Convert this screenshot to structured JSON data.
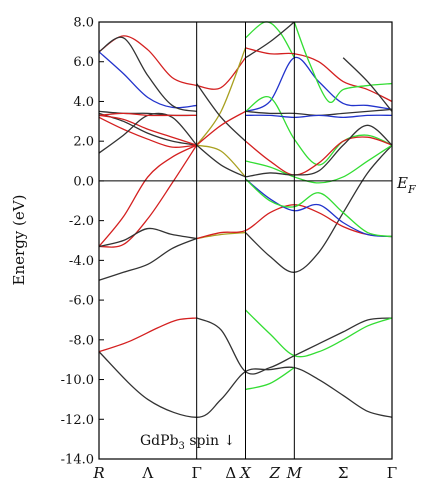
{
  "chart_data": {
    "type": "line",
    "ylabel": "Energy (eV)",
    "ylim": [
      -14.0,
      8.0
    ],
    "yticks": [
      "8.0",
      "6.0",
      "4.0",
      "2.0",
      "0.0",
      "-2.0",
      "-4.0",
      "-6.0",
      "-8.0",
      "-10.0",
      "-12.0",
      "-14.0"
    ],
    "ytick_values": [
      8,
      6,
      4,
      2,
      0,
      -2,
      -4,
      -6,
      -8,
      -10,
      -12,
      -14
    ],
    "xlim": [
      0,
      6
    ],
    "x_points": [
      {
        "label": "R",
        "x": 0
      },
      {
        "label": "Λ",
        "x": 1
      },
      {
        "label": "Γ",
        "x": 2
      },
      {
        "label": "Δ",
        "x": 2.7
      },
      {
        "label": "X",
        "x": 3
      },
      {
        "label": "Z",
        "x": 3.6
      },
      {
        "label": "M",
        "x": 4
      },
      {
        "label": "Σ",
        "x": 5
      },
      {
        "label": "Γ",
        "x": 6
      }
    ],
    "vlines": [
      2,
      3,
      4
    ],
    "fermi_level": 0.0,
    "fermi_label": "E",
    "fermi_label_sub": "F",
    "annotation": "GdPb",
    "annotation_sub": "3",
    "annotation_suffix": " spin ↓",
    "colors": {
      "black": "#333333",
      "red": "#d42020",
      "blue": "#2233cc",
      "green": "#33dd33",
      "olive": "#a8a020"
    },
    "series": [
      {
        "color": "black",
        "x": [
          0,
          1,
          2,
          2.5,
          3,
          3.5,
          4,
          4.5,
          5,
          5.5,
          6
        ],
        "y": [
          -8.6,
          -11.0,
          -11.9,
          -11.0,
          -9.6,
          -9.5,
          -9.4,
          -10.0,
          -10.8,
          -11.6,
          -11.9
        ]
      },
      {
        "color": "red",
        "x": [
          0,
          0.6,
          1.2,
          1.6,
          2
        ],
        "y": [
          -8.6,
          -8.1,
          -7.4,
          -7.0,
          -6.9
        ]
      },
      {
        "color": "black",
        "x": [
          2,
          2.5,
          3,
          3.5,
          4,
          4.5,
          5,
          5.5,
          6
        ],
        "y": [
          -6.9,
          -7.5,
          -9.6,
          -9.4,
          -8.8,
          -8.2,
          -7.6,
          -7.0,
          -6.9
        ]
      },
      {
        "color": "green",
        "x": [
          3,
          3.5,
          4,
          4.5,
          5,
          5.5,
          6
        ],
        "y": [
          -6.5,
          -7.7,
          -8.8,
          -8.6,
          -8.0,
          -7.3,
          -6.9
        ]
      },
      {
        "color": "green",
        "x": [
          3,
          3.5,
          4
        ],
        "y": [
          -10.5,
          -10.2,
          -9.4
        ]
      },
      {
        "color": "black",
        "x": [
          0,
          0.5,
          1,
          1.5,
          2
        ],
        "y": [
          -5.0,
          -4.6,
          -4.2,
          -3.4,
          -2.9
        ]
      },
      {
        "color": "red",
        "x": [
          0,
          0.5,
          1,
          1.5,
          2
        ],
        "y": [
          -3.3,
          -3.2,
          -1.9,
          -0.1,
          1.8
        ]
      },
      {
        "color": "red",
        "x": [
          0,
          0.5,
          1,
          1.5,
          2
        ],
        "y": [
          -3.3,
          -1.8,
          0.2,
          1.2,
          1.8
        ]
      },
      {
        "color": "black",
        "x": [
          0,
          0.5,
          1,
          1.5,
          2
        ],
        "y": [
          -3.3,
          -3.0,
          -2.4,
          -2.7,
          -2.9
        ]
      },
      {
        "color": "olive",
        "x": [
          2,
          2.5,
          3
        ],
        "y": [
          -2.9,
          -2.7,
          -2.6
        ]
      },
      {
        "color": "black",
        "x": [
          3,
          3.5,
          4,
          4.5,
          5,
          5.5,
          6
        ],
        "y": [
          -2.6,
          -3.8,
          -4.6,
          -3.6,
          -1.6,
          0.4,
          1.8
        ]
      },
      {
        "color": "red",
        "x": [
          2,
          2.5,
          3,
          3.5,
          4,
          4.5,
          5,
          5.5,
          6
        ],
        "y": [
          -2.9,
          -2.6,
          -2.5,
          -1.6,
          -1.2,
          -1.6,
          -2.3,
          -2.7,
          -2.8
        ]
      },
      {
        "color": "blue",
        "x": [
          3,
          3.5,
          4,
          4.5,
          5,
          5.5,
          6
        ],
        "y": [
          0.1,
          -0.9,
          -1.5,
          -1.2,
          -2.1,
          -2.7,
          -2.8
        ]
      },
      {
        "color": "green",
        "x": [
          3,
          3.5,
          4,
          4.5,
          5,
          5.5,
          6
        ],
        "y": [
          0.1,
          -1.0,
          -1.3,
          -0.6,
          -1.6,
          -2.6,
          -2.8
        ]
      },
      {
        "color": "red",
        "x": [
          0,
          0.5,
          1,
          1.5,
          2
        ],
        "y": [
          6.5,
          7.3,
          6.6,
          5.2,
          4.8
        ]
      },
      {
        "color": "blue",
        "x": [
          0,
          0.5,
          1,
          1.5,
          2
        ],
        "y": [
          6.5,
          5.4,
          4.2,
          3.7,
          3.8
        ]
      },
      {
        "color": "black",
        "x": [
          0,
          0.5,
          1,
          1.5,
          2
        ],
        "y": [
          6.5,
          7.2,
          5.3,
          3.8,
          3.5
        ]
      },
      {
        "color": "black",
        "x": [
          0,
          0.5,
          1,
          1.5,
          2
        ],
        "y": [
          3.4,
          3.0,
          2.4,
          2.0,
          1.8
        ]
      },
      {
        "color": "red",
        "x": [
          0,
          0.5,
          1,
          1.5,
          2
        ],
        "y": [
          3.3,
          3.1,
          2.6,
          2.2,
          1.8
        ]
      },
      {
        "color": "red",
        "x": [
          0,
          0.5,
          1,
          1.5,
          2
        ],
        "y": [
          3.2,
          2.6,
          2.1,
          1.7,
          1.8
        ]
      },
      {
        "color": "black",
        "x": [
          0,
          0.5,
          1,
          1.5,
          2
        ],
        "y": [
          1.4,
          2.3,
          3.3,
          3.2,
          1.8
        ]
      },
      {
        "color": "black",
        "x": [
          0,
          0.5,
          1,
          1.5,
          2
        ],
        "y": [
          3.5,
          3.4,
          3.4,
          3.3,
          3.3
        ]
      },
      {
        "color": "red",
        "x": [
          0,
          0.5,
          1,
          1.5,
          2
        ],
        "y": [
          3.3,
          3.4,
          3.3,
          3.3,
          3.3
        ]
      },
      {
        "color": "red",
        "x": [
          2,
          2.5,
          3
        ],
        "y": [
          4.8,
          4.7,
          6.2
        ]
      },
      {
        "color": "olive",
        "x": [
          2,
          2.5,
          3
        ],
        "y": [
          1.8,
          3.5,
          6.7
        ]
      },
      {
        "color": "black",
        "x": [
          2,
          2.5,
          3
        ],
        "y": [
          4.9,
          3.2,
          2.0
        ]
      },
      {
        "color": "red",
        "x": [
          2,
          2.5,
          3
        ],
        "y": [
          1.8,
          2.8,
          3.5
        ]
      },
      {
        "color": "olive",
        "x": [
          2,
          2.5,
          3
        ],
        "y": [
          1.8,
          1.5,
          0.2
        ]
      },
      {
        "color": "black",
        "x": [
          2,
          2.5,
          3
        ],
        "y": [
          1.8,
          0.8,
          0.2
        ]
      },
      {
        "color": "green",
        "x": [
          3,
          3.4,
          3.7,
          4
        ],
        "y": [
          7.2,
          8.0,
          7.5,
          6.2
        ]
      },
      {
        "color": "black",
        "x": [
          3,
          3.5,
          4
        ],
        "y": [
          6.2,
          7.0,
          8.0
        ]
      },
      {
        "color": "red",
        "x": [
          3,
          3.5,
          4,
          4.5,
          5,
          5.5,
          6
        ],
        "y": [
          6.7,
          6.4,
          6.4,
          6.0,
          5.0,
          4.6,
          4.0
        ]
      },
      {
        "color": "blue",
        "x": [
          3,
          3.5,
          4,
          4.5,
          5,
          5.5,
          6
        ],
        "y": [
          3.5,
          4.0,
          6.2,
          5.0,
          3.9,
          3.8,
          3.6
        ]
      },
      {
        "color": "green",
        "x": [
          4,
          4.3,
          4.7,
          5,
          5.5,
          6
        ],
        "y": [
          8.0,
          6.0,
          4.0,
          4.6,
          4.8,
          4.9
        ]
      },
      {
        "color": "green",
        "x": [
          3,
          3.5,
          4,
          4.5,
          5,
          5.5,
          6
        ],
        "y": [
          3.5,
          4.2,
          2.1,
          0.8,
          2.0,
          2.3,
          1.8
        ]
      },
      {
        "color": "black",
        "x": [
          3,
          3.5,
          4,
          4.5,
          5,
          5.5,
          6
        ],
        "y": [
          3.5,
          3.4,
          3.4,
          3.3,
          3.4,
          3.5,
          3.6
        ]
      },
      {
        "color": "red",
        "x": [
          3,
          3.5,
          4,
          4.5,
          5,
          5.5,
          6
        ],
        "y": [
          2.0,
          1.0,
          0.3,
          0.9,
          2.0,
          2.2,
          1.8
        ]
      },
      {
        "color": "green",
        "x": [
          3,
          3.5,
          4,
          4.5,
          5,
          5.5,
          6
        ],
        "y": [
          1.0,
          0.7,
          0.2,
          -0.1,
          0.2,
          1.0,
          1.8
        ]
      },
      {
        "color": "black",
        "x": [
          3,
          3.5,
          4,
          4.5,
          5,
          5.5,
          6
        ],
        "y": [
          0.2,
          0.4,
          0.3,
          0.5,
          1.8,
          2.8,
          1.8
        ]
      },
      {
        "color": "blue",
        "x": [
          3,
          3.5,
          4,
          4.5,
          5,
          5.5,
          6
        ],
        "y": [
          3.3,
          3.3,
          3.2,
          3.3,
          3.2,
          3.3,
          3.3
        ]
      },
      {
        "color": "black",
        "x": [
          5,
          5.5,
          6
        ],
        "y": [
          6.2,
          5.0,
          3.5
        ]
      }
    ]
  }
}
